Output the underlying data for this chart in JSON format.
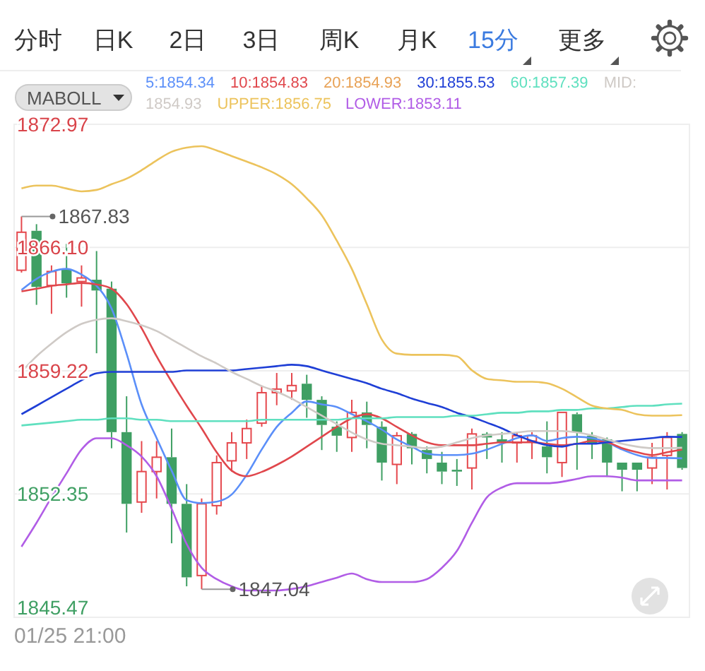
{
  "chart_data": {
    "type": "candlestick",
    "categories": [
      null,
      null,
      null,
      null,
      null,
      null,
      null,
      null,
      null,
      null,
      null,
      null,
      null,
      null,
      null,
      null,
      null,
      null,
      null,
      null,
      null,
      null,
      null,
      null,
      null,
      null,
      null,
      null,
      null,
      null,
      null,
      null,
      null,
      null,
      null,
      null,
      null,
      null,
      null,
      null,
      null,
      null,
      null,
      null,
      null
    ],
    "ohlc": [
      [
        1864.83,
        1867.83,
        1864.7,
        1866.95
      ],
      [
        1867.03,
        1867.4,
        1862.9,
        1863.9
      ],
      [
        1863.98,
        1865.1,
        1862.4,
        1864.76
      ],
      [
        1864.9,
        1866.3,
        1863.3,
        1864.1
      ],
      [
        1864.2,
        1865.1,
        1862.8,
        1864.4
      ],
      [
        1864.3,
        1865.9,
        1860.2,
        1863.7
      ],
      [
        1863.8,
        1864.2,
        1854.9,
        1855.8
      ],
      [
        1855.8,
        1857.8,
        1850.2,
        1851.8
      ],
      [
        1851.9,
        1855.3,
        1851.3,
        1853.6
      ],
      [
        1853.6,
        1855.3,
        1852.1,
        1854.4
      ],
      [
        1854.4,
        1856.0,
        1849.6,
        1851.8
      ],
      [
        1851.8,
        1852.9,
        1847.2,
        1847.7
      ],
      [
        1847.8,
        1852.1,
        1847.04,
        1851.8
      ],
      [
        1851.7,
        1854.5,
        1851.2,
        1854.1
      ],
      [
        1854.2,
        1855.8,
        1853.6,
        1855.2
      ],
      [
        1855.2,
        1856.5,
        1854.3,
        1856.0
      ],
      [
        1856.3,
        1858.4,
        1856.1,
        1858.0
      ],
      [
        1858.0,
        1859.1,
        1857.3,
        1858.2
      ],
      [
        1858.1,
        1859.1,
        1857.6,
        1858.4
      ],
      [
        1858.5,
        1859.0,
        1856.6,
        1857.6
      ],
      [
        1857.6,
        1857.8,
        1854.8,
        1856.2
      ],
      [
        1856.1,
        1856.4,
        1854.7,
        1855.6
      ],
      [
        1855.5,
        1857.6,
        1854.7,
        1856.9
      ],
      [
        1856.9,
        1857.5,
        1854.9,
        1856.2
      ],
      [
        1856.1,
        1856.4,
        1853.1,
        1854.1
      ],
      [
        1854.0,
        1855.8,
        1852.9,
        1855.6
      ],
      [
        1855.7,
        1855.8,
        1854.0,
        1854.9
      ],
      [
        1854.8,
        1855.0,
        1853.5,
        1854.3
      ],
      [
        1854.1,
        1854.7,
        1852.9,
        1853.6
      ],
      [
        1853.7,
        1854.3,
        1852.8,
        1853.6
      ],
      [
        1853.8,
        1856.0,
        1852.6,
        1855.7
      ],
      [
        1855.7,
        1855.8,
        1854.3,
        1855.5
      ],
      [
        1855.4,
        1855.8,
        1854.1,
        1855.2
      ],
      [
        1855.2,
        1855.8,
        1854.1,
        1855.6
      ],
      [
        1855.3,
        1855.8,
        1854.3,
        1855.6
      ],
      [
        1855.0,
        1856.4,
        1853.5,
        1854.4
      ],
      [
        1854.1,
        1856.9,
        1853.3,
        1856.9
      ],
      [
        1856.8,
        1856.9,
        1853.7,
        1855.8
      ],
      [
        1855.6,
        1855.8,
        1854.3,
        1855.2
      ],
      [
        1855.4,
        1855.5,
        1853.3,
        1854.1
      ],
      [
        1854.1,
        1854.1,
        1852.5,
        1853.7
      ],
      [
        1854.1,
        1854.1,
        1852.5,
        1853.7
      ],
      [
        1853.8,
        1855.2,
        1852.9,
        1854.4
      ],
      [
        1854.5,
        1855.8,
        1852.6,
        1855.5
      ],
      [
        1855.7,
        1855.8,
        1853.7,
        1853.8
      ]
    ],
    "series": [
      {
        "type": "line",
        "name": "5:1854.34",
        "color": "#5b8ff9",
        "values": [
          1863.73,
          1864.35,
          1864.75,
          1864.91,
          1864.59,
          1863.96,
          1862.7,
          1860.18,
          1857.35,
          1855.47,
          1853.65,
          1852.0,
          1851.84,
          1851.92,
          1852.32,
          1853.42,
          1854.83,
          1856.09,
          1856.88,
          1857.51,
          1857.35,
          1857.2,
          1856.8,
          1856.41,
          1855.94,
          1855.39,
          1854.99,
          1854.6,
          1854.52,
          1854.52,
          1854.6,
          1854.83,
          1855.15,
          1855.47,
          1855.62,
          1855.31,
          1855.47,
          1855.54,
          1855.47,
          1855.23,
          1854.83,
          1854.52,
          1854.36,
          1854.36,
          1854.34
        ]
      },
      {
        "type": "line",
        "name": "10:1854.83",
        "color": "#e0474c",
        "values": [
          1863.65,
          1863.8,
          1863.96,
          1864.04,
          1864.12,
          1864.04,
          1863.8,
          1862.94,
          1861.6,
          1860.03,
          1858.61,
          1857.27,
          1856.01,
          1854.68,
          1853.65,
          1853.34,
          1853.58,
          1853.97,
          1854.44,
          1854.99,
          1855.54,
          1856.09,
          1856.57,
          1856.8,
          1856.57,
          1856.09,
          1855.62,
          1855.23,
          1855.07,
          1855.07,
          1855.07,
          1855.15,
          1855.23,
          1855.23,
          1855.23,
          1855.15,
          1855.07,
          1855.15,
          1855.31,
          1855.23,
          1854.91,
          1854.68,
          1854.52,
          1854.68,
          1854.83
        ]
      },
      {
        "type": "line",
        "name": "30:1855.53",
        "color": "#1f3fd6",
        "values": [
          1856.8,
          1857.27,
          1857.75,
          1858.22,
          1858.69,
          1859.08,
          1859.16,
          1859.16,
          1859.16,
          1859.16,
          1859.16,
          1859.24,
          1859.24,
          1859.24,
          1859.24,
          1859.32,
          1859.4,
          1859.48,
          1859.56,
          1859.48,
          1859.24,
          1859.0,
          1858.77,
          1858.53,
          1858.22,
          1857.98,
          1857.67,
          1857.43,
          1857.2,
          1856.88,
          1856.64,
          1856.33,
          1856.01,
          1855.62,
          1855.31,
          1855.07,
          1854.99,
          1855.15,
          1855.15,
          1855.23,
          1855.31,
          1855.39,
          1855.47,
          1855.54,
          1855.53
        ]
      },
      {
        "type": "line",
        "name": "60:1857.39",
        "color": "#5fe0bf",
        "values": [
          1856.17,
          1856.25,
          1856.33,
          1856.41,
          1856.49,
          1856.49,
          1856.57,
          1856.57,
          1856.49,
          1856.49,
          1856.41,
          1856.41,
          1856.41,
          1856.41,
          1856.41,
          1856.41,
          1856.49,
          1856.49,
          1856.49,
          1856.49,
          1856.49,
          1856.49,
          1856.57,
          1856.57,
          1856.57,
          1856.64,
          1856.64,
          1856.64,
          1856.64,
          1856.72,
          1856.72,
          1856.8,
          1856.88,
          1856.88,
          1856.96,
          1856.96,
          1857.04,
          1857.04,
          1857.12,
          1857.12,
          1857.2,
          1857.27,
          1857.27,
          1857.35,
          1857.39
        ]
      },
      {
        "type": "line",
        "name": "MID:1854.93",
        "color": "#cfcac6",
        "values": [
          1859.16,
          1860.03,
          1860.74,
          1861.37,
          1861.84,
          1862.07,
          1862.15,
          1861.99,
          1861.76,
          1861.44,
          1860.97,
          1860.5,
          1860.03,
          1859.63,
          1859.16,
          1858.77,
          1858.37,
          1858.06,
          1857.67,
          1857.2,
          1856.72,
          1856.25,
          1855.78,
          1855.39,
          1855.15,
          1855.07,
          1854.99,
          1854.91,
          1854.99,
          1855.23,
          1855.47,
          1855.62,
          1855.7,
          1855.78,
          1855.86,
          1855.86,
          1855.86,
          1855.78,
          1855.62,
          1855.39,
          1855.15,
          1854.99,
          1854.91,
          1854.91,
          1854.93
        ]
      },
      {
        "type": "line",
        "name": "UPPER:1856.75",
        "color": "#ecc35c",
        "values": [
          1869.39,
          1869.55,
          1869.55,
          1869.39,
          1869.23,
          1869.31,
          1869.63,
          1869.94,
          1870.41,
          1870.96,
          1871.44,
          1871.67,
          1871.75,
          1871.51,
          1871.2,
          1870.89,
          1870.57,
          1870.18,
          1869.63,
          1868.84,
          1867.9,
          1866.48,
          1864.91,
          1862.94,
          1860.97,
          1860.18,
          1860.11,
          1860.11,
          1860.11,
          1860.03,
          1859.25,
          1858.77,
          1858.69,
          1858.61,
          1858.61,
          1858.53,
          1858.22,
          1857.75,
          1857.28,
          1857.12,
          1857.04,
          1856.8,
          1856.72,
          1856.72,
          1856.75
        ]
      },
      {
        "type": "line",
        "name": "LOWER:1853.11",
        "color": "#b15de6",
        "values": [
          1849.41,
          1850.74,
          1852.16,
          1853.5,
          1854.83,
          1855.46,
          1855.46,
          1855.07,
          1854.44,
          1853.34,
          1851.53,
          1849.56,
          1848.23,
          1847.6,
          1847.2,
          1846.97,
          1846.97,
          1846.97,
          1847.05,
          1847.2,
          1847.44,
          1847.68,
          1847.91,
          1847.6,
          1847.44,
          1847.44,
          1847.44,
          1847.6,
          1848.23,
          1849.17,
          1850.74,
          1852.16,
          1852.71,
          1852.95,
          1852.95,
          1852.95,
          1853.03,
          1853.19,
          1853.34,
          1853.34,
          1853.26,
          1853.11,
          1853.11,
          1853.11,
          1853.11
        ]
      }
    ],
    "ylim": [
      1845.47,
      1872.97
    ],
    "yticks": [
      1845.47,
      1852.35,
      1859.22,
      {
        "value": 1866.1,
        "label": "1866.10"
      },
      1872.97
    ],
    "grid": "y",
    "legend": "top",
    "annotations": [
      "分时",
      "日K",
      "2日",
      "3日",
      "周K",
      "月K",
      "15分",
      "更多",
      "MABOLL",
      "20:1854.93",
      "01/25 21:00",
      "1867.83",
      "1847.04"
    ]
  }
}
